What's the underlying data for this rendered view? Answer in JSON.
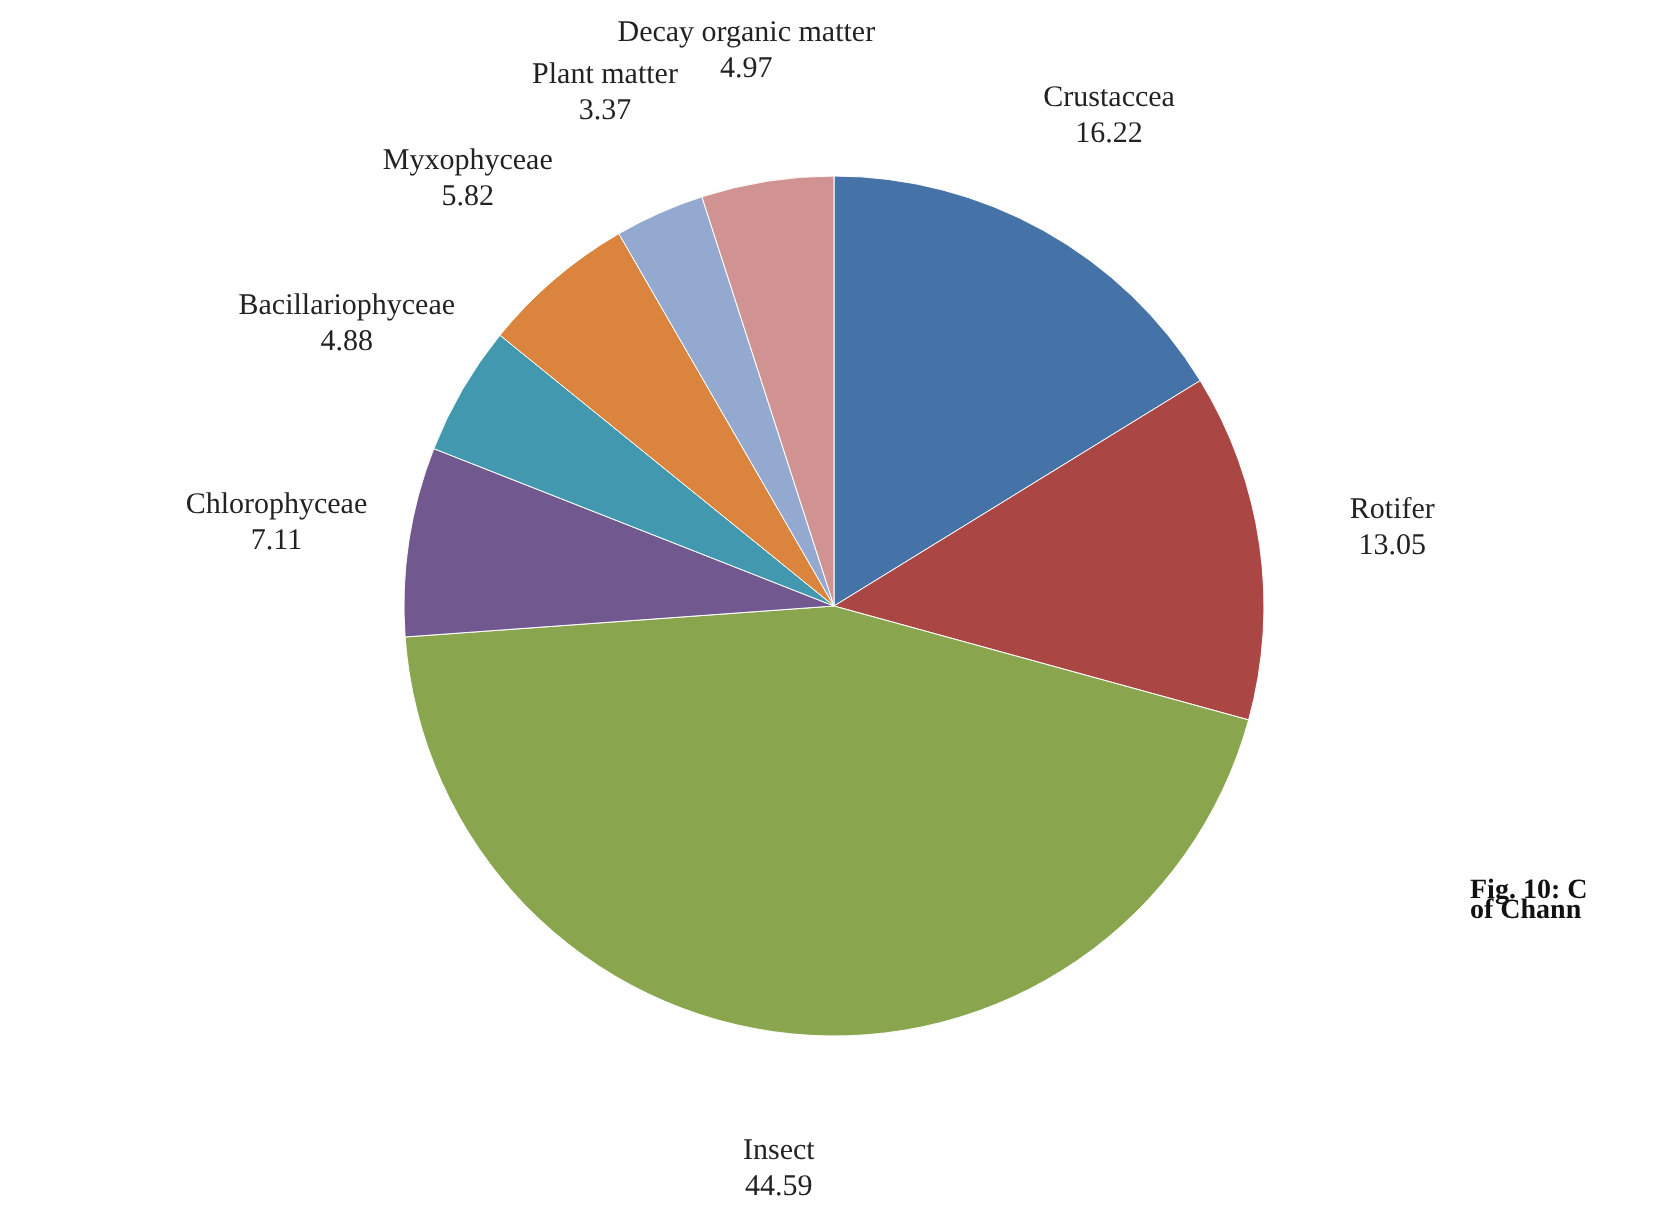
{
  "chart_data": {
    "type": "pie",
    "categories": [
      "Crustaccea",
      "Rotifer",
      "Insect",
      "Chlorophyceae",
      "Bacillariophyceae",
      "Myxophyceae",
      "Plant matter",
      "Decay organic matter"
    ],
    "values": [
      16.22,
      13.05,
      44.59,
      7.11,
      4.88,
      5.82,
      3.37,
      4.97
    ],
    "colors": [
      "#4572a7",
      "#aa4643",
      "#89a54e",
      "#71588f",
      "#4198af",
      "#db843d",
      "#93a9cf",
      "#d19392"
    ],
    "data_labels": true,
    "annotations": [
      "Fig. 10: C",
      "of Chann"
    ]
  }
}
